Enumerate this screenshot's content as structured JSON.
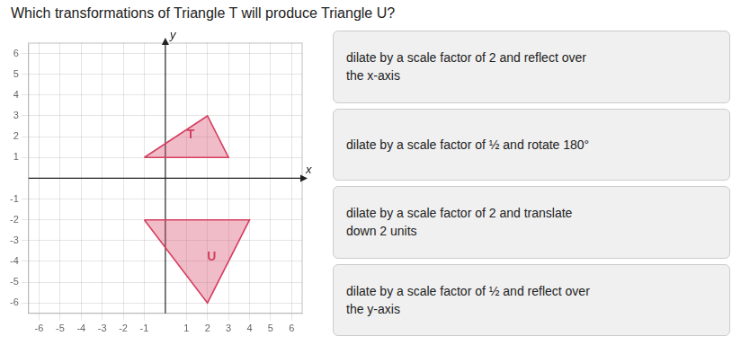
{
  "chart_data": {
    "type": "polygon",
    "title": "Which transformations of Triangle T will produce Triangle U?",
    "xlabel": "x",
    "ylabel": "y",
    "series": [
      {
        "name": "T",
        "color": "#d44060",
        "values": [
          [
            -1,
            1
          ],
          [
            2,
            3
          ],
          [
            3,
            1
          ]
        ]
      },
      {
        "name": "U",
        "color": "#d44060",
        "values": [
          [
            -1,
            -2
          ],
          [
            4,
            -2
          ],
          [
            2,
            -6
          ]
        ]
      }
    ],
    "annotations": [
      {
        "text": "T",
        "x": 1.2,
        "y": 2.1
      },
      {
        "text": "U",
        "x": 2.2,
        "y": -3.8
      }
    ],
    "answer_options": [
      [
        "dilate by a scale factor of 2 and reflect over",
        "the x-axis"
      ],
      [
        "dilate by a scale factor of ½ and rotate 180°"
      ],
      [
        "dilate by a scale factor of 2 and translate",
        "down 2 units"
      ],
      [
        "dilate by a scale factor of ½ and reflect over",
        "the y-axis"
      ]
    ],
    "xlim": [
      -6.5,
      6.5
    ],
    "ylim": [
      -6.5,
      6.5
    ],
    "xticks": [
      -6,
      -5,
      -4,
      -3,
      -2,
      -1,
      1,
      2,
      3,
      4,
      5,
      6
    ],
    "yticks": [
      -6,
      -5,
      -4,
      -3,
      -2,
      -1,
      1,
      2,
      3,
      4,
      5,
      6
    ],
    "grid": true
  }
}
